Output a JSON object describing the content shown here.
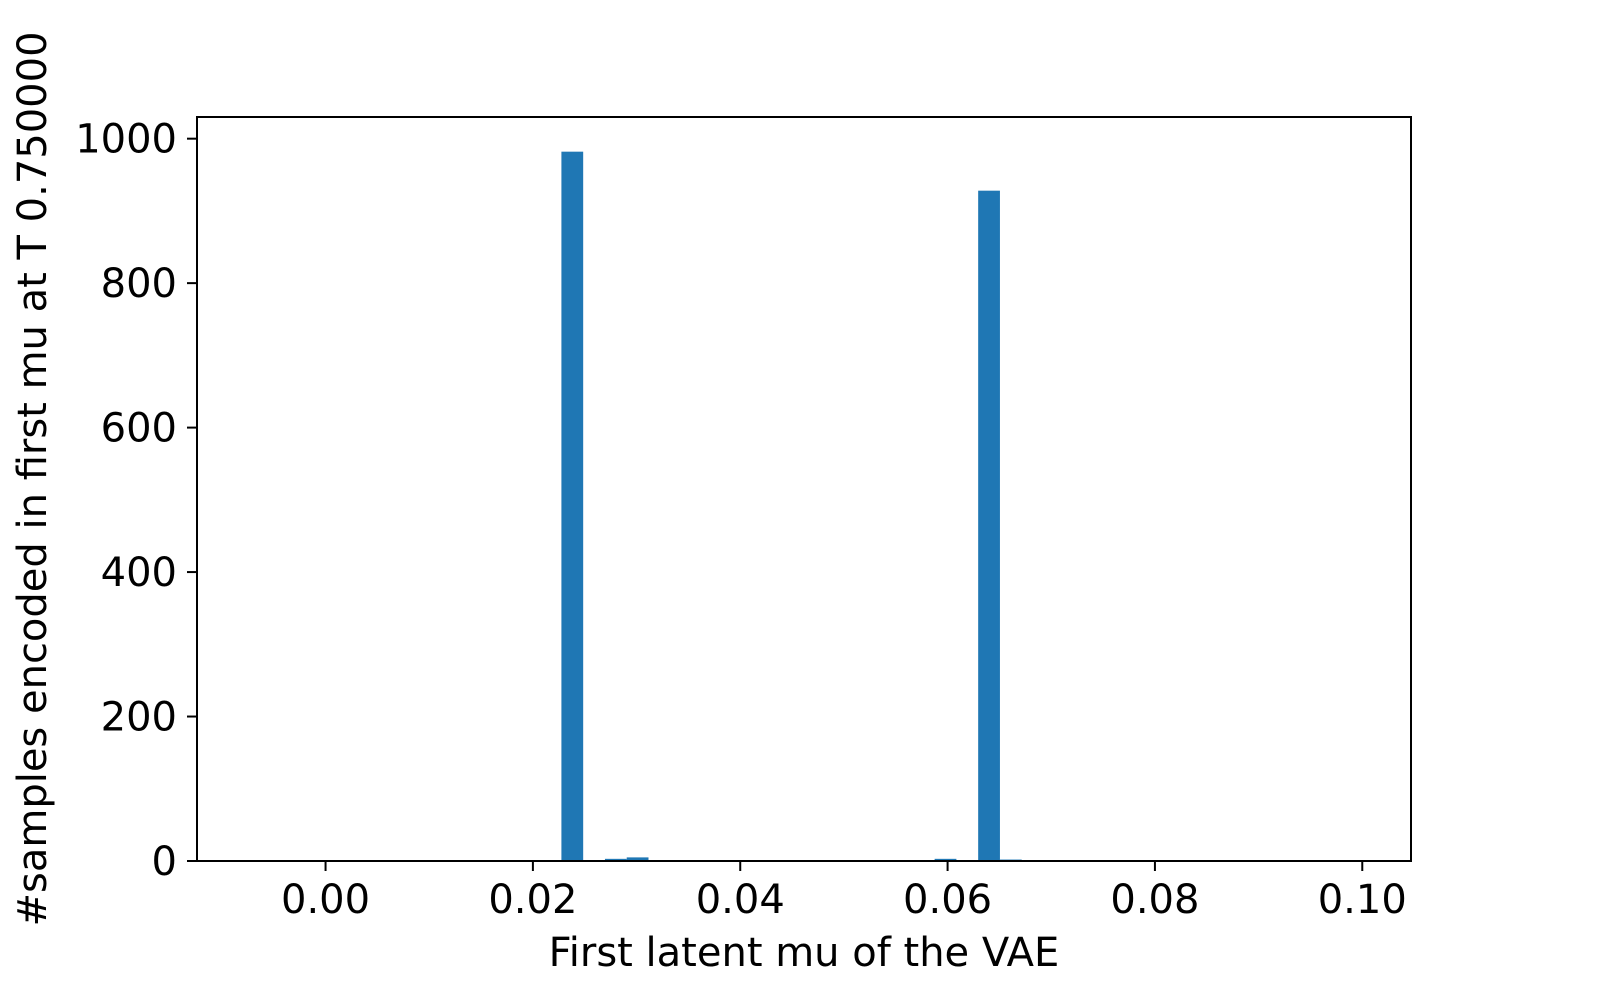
{
  "chart_data": {
    "type": "bar",
    "title": "",
    "xlabel": "First latent mu of the VAE",
    "ylabel": "#samples encoded in first mu at T 0.750000",
    "xlim": [
      -0.0124,
      0.1047
    ],
    "ylim": [
      0,
      1030
    ],
    "bar_width": 0.0021,
    "bar_color": "#1f77b4",
    "grid": false,
    "xticks": [
      0.0,
      0.02,
      0.04,
      0.06,
      0.08,
      0.1
    ],
    "xtick_labels": [
      "0.00",
      "0.02",
      "0.04",
      "0.06",
      "0.08",
      "0.10"
    ],
    "yticks": [
      0,
      200,
      400,
      600,
      800,
      1000
    ],
    "ytick_labels": [
      "0",
      "200",
      "400",
      "600",
      "800",
      "1000"
    ],
    "x": [
      0.0238,
      0.028,
      0.0301,
      0.0406,
      0.0598,
      0.064,
      0.0661,
      0.0724
    ],
    "values": [
      982,
      3,
      5,
      1,
      3,
      928,
      2,
      1
    ]
  }
}
